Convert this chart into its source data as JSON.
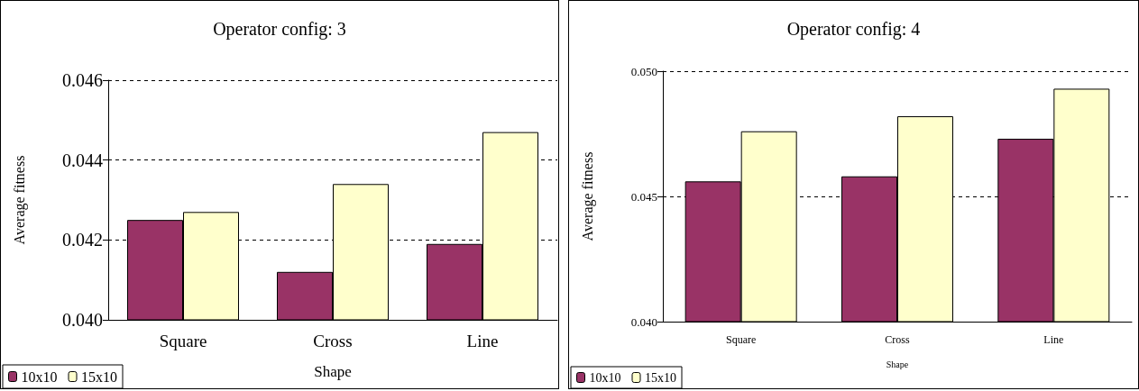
{
  "chart_data": [
    {
      "type": "bar",
      "title": "Operator config: 3",
      "xlabel": "Shape",
      "ylabel": "Average fitness",
      "categories": [
        "Square",
        "Cross",
        "Line"
      ],
      "series": [
        {
          "name": "10x10",
          "color": "#993366",
          "values": [
            0.0425,
            0.0412,
            0.0419
          ]
        },
        {
          "name": "15x10",
          "color": "#ffffcc",
          "values": [
            0.0427,
            0.0434,
            0.0447
          ]
        }
      ],
      "ylim": [
        0.04,
        0.046
      ],
      "yticks": [
        {
          "value": 0.04,
          "label": "0.040"
        },
        {
          "value": 0.042,
          "label": "0.042"
        },
        {
          "value": 0.044,
          "label": "0.044"
        },
        {
          "value": 0.046,
          "label": "0.046"
        }
      ],
      "grid": "y",
      "legend": "bottom left"
    },
    {
      "type": "bar",
      "title": "Operator config: 4",
      "xlabel": "Shape",
      "ylabel": "Average fitness",
      "categories": [
        "Square",
        "Cross",
        "Line"
      ],
      "series": [
        {
          "name": "10x10",
          "color": "#993366",
          "values": [
            0.0456,
            0.0458,
            0.0473
          ]
        },
        {
          "name": "15x10",
          "color": "#ffffcc",
          "values": [
            0.0476,
            0.0482,
            0.0493
          ]
        }
      ],
      "ylim": [
        0.04,
        0.05
      ],
      "yticks": [
        {
          "value": 0.04,
          "label": "0.040"
        },
        {
          "value": 0.045,
          "label": "0.045"
        },
        {
          "value": 0.05,
          "label": "0.050"
        }
      ],
      "grid": "y",
      "legend": "bottom left"
    }
  ]
}
